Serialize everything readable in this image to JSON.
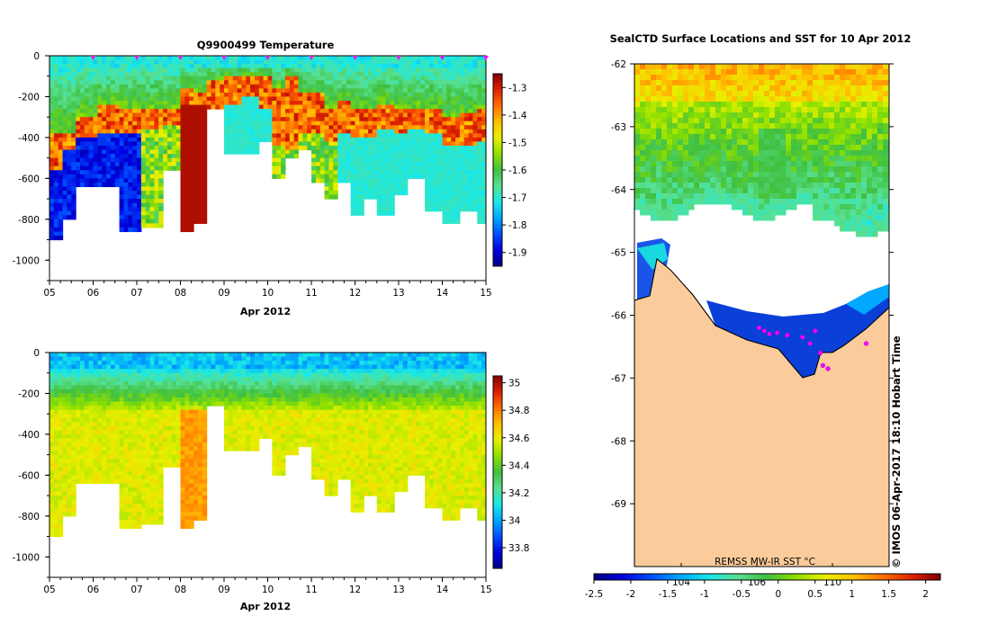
{
  "chart_data": [
    {
      "type": "heatmap",
      "title": "Q9900499  Temperature",
      "xlabel": "Apr 2012",
      "ylabel": "",
      "xticks": [
        "05",
        "06",
        "07",
        "08",
        "09",
        "10",
        "11",
        "12",
        "13",
        "14",
        "15"
      ],
      "xlim": [
        5,
        15
      ],
      "yticks": [
        0,
        -200,
        -400,
        -600,
        -800,
        -1000
      ],
      "ylim": [
        -1100,
        0
      ],
      "colorbar": {
        "min": -1.95,
        "max": -1.25,
        "ticks": [
          -1.3,
          -1.4,
          -1.5,
          -1.6,
          -1.7,
          -1.8,
          -1.9
        ]
      },
      "profile_markers": [
        6,
        7,
        8,
        9,
        10,
        11,
        12,
        13,
        14,
        15
      ],
      "profiles": [
        {
          "day": 5.1,
          "depth": 900,
          "warm_top": 380,
          "warm_bot": 560,
          "mode": "cold_deep"
        },
        {
          "day": 5.4,
          "depth": 800,
          "warm_top": 380,
          "warm_bot": 460,
          "mode": "cold_deep"
        },
        {
          "day": 5.8,
          "depth": 640,
          "warm_top": 300,
          "warm_bot": 400,
          "mode": "cold_deep"
        },
        {
          "day": 6.4,
          "depth": 630,
          "warm_top": 240,
          "warm_bot": 380,
          "mode": "cold_deep"
        },
        {
          "day": 6.8,
          "depth": 860,
          "warm_top": 250,
          "warm_bot": 380,
          "mode": "cold_deep"
        },
        {
          "day": 7.3,
          "depth": 840,
          "warm_top": 250,
          "warm_bot": 360,
          "mode": "mixed"
        },
        {
          "day": 7.8,
          "depth": 560,
          "warm_top": 250,
          "warm_bot": 340,
          "mode": "mixed"
        },
        {
          "day": 8.15,
          "depth": 860,
          "warm_top": 160,
          "warm_bot": 860,
          "mode": "warm_deep"
        },
        {
          "day": 8.45,
          "depth": 810,
          "warm_top": 170,
          "warm_bot": 810,
          "mode": "warm_deep"
        },
        {
          "day": 8.75,
          "depth": 250,
          "warm_top": 120,
          "warm_bot": 250,
          "mode": "mixed"
        },
        {
          "day": 9.2,
          "depth": 470,
          "warm_top": 100,
          "warm_bot": 230,
          "mode": "cyan_deep"
        },
        {
          "day": 9.6,
          "depth": 470,
          "warm_top": 100,
          "warm_bot": 190,
          "mode": "cyan_deep"
        },
        {
          "day": 10.0,
          "depth": 420,
          "warm_top": 100,
          "warm_bot": 250,
          "mode": "cyan_deep"
        },
        {
          "day": 10.25,
          "depth": 590,
          "warm_top": 150,
          "warm_bot": 430,
          "mode": "mixed"
        },
        {
          "day": 10.5,
          "depth": 500,
          "warm_top": 100,
          "warm_bot": 450,
          "mode": "mixed"
        },
        {
          "day": 10.8,
          "depth": 460,
          "warm_top": 180,
          "warm_bot": 380,
          "mode": "mixed"
        },
        {
          "day": 11.1,
          "depth": 620,
          "warm_top": 180,
          "warm_bot": 380,
          "mode": "mixed"
        },
        {
          "day": 11.4,
          "depth": 700,
          "warm_top": 250,
          "warm_bot": 420,
          "mode": "mixed"
        },
        {
          "day": 11.7,
          "depth": 610,
          "warm_top": 220,
          "warm_bot": 380,
          "mode": "cyan_deep"
        },
        {
          "day": 12.0,
          "depth": 780,
          "warm_top": 250,
          "warm_bot": 400,
          "mode": "cyan_deep"
        },
        {
          "day": 12.3,
          "depth": 690,
          "warm_top": 260,
          "warm_bot": 390,
          "mode": "cyan_deep"
        },
        {
          "day": 12.7,
          "depth": 770,
          "warm_top": 230,
          "warm_bot": 360,
          "mode": "cyan_deep"
        },
        {
          "day": 13.0,
          "depth": 680,
          "warm_top": 250,
          "warm_bot": 380,
          "mode": "cyan_deep"
        },
        {
          "day": 13.4,
          "depth": 600,
          "warm_top": 250,
          "warm_bot": 360,
          "mode": "cyan_deep"
        },
        {
          "day": 13.8,
          "depth": 760,
          "warm_top": 250,
          "warm_bot": 380,
          "mode": "cyan_deep"
        },
        {
          "day": 14.2,
          "depth": 820,
          "warm_top": 290,
          "warm_bot": 430,
          "mode": "cyan_deep"
        },
        {
          "day": 14.6,
          "depth": 760,
          "warm_top": 280,
          "warm_bot": 440,
          "mode": "cyan_deep"
        },
        {
          "day": 14.9,
          "depth": 820,
          "warm_top": 260,
          "warm_bot": 420,
          "mode": "cyan_deep"
        }
      ]
    },
    {
      "type": "heatmap",
      "title": "",
      "xlabel": "Apr 2012",
      "ylabel": "",
      "xticks": [
        "05",
        "06",
        "07",
        "08",
        "09",
        "10",
        "11",
        "12",
        "13",
        "14",
        "15"
      ],
      "xlim": [
        5,
        15
      ],
      "yticks": [
        0,
        -200,
        -400,
        -600,
        -800,
        -1000
      ],
      "ylim": [
        -1100,
        0
      ],
      "colorbar": {
        "min": 33.65,
        "max": 35.05,
        "ticks": [
          35,
          34.8,
          34.6,
          34.4,
          34.2,
          34,
          33.8
        ]
      }
    },
    {
      "type": "heatmap",
      "title": "SealCTD Surface Locations and SST for 10 Apr 2012",
      "xlabel": "",
      "ylabel": "",
      "yticks": [
        -62,
        -63,
        -64,
        -65,
        -66,
        -67,
        -68,
        -69
      ],
      "ylim": [
        -70,
        -62
      ],
      "inner_xticks": [
        "104",
        "106",
        "110"
      ],
      "annotation": "REMSS MW-IR SST °C",
      "side_note": "©  IMOS 06-Apr-2017 18:10 Hobart Time",
      "colorbar": {
        "min": -2.5,
        "max": 2.2,
        "ticks": [
          -2.5,
          -2,
          -1.5,
          -1,
          -0.5,
          0,
          0.5,
          1,
          1.5,
          2
        ]
      },
      "seal_positions": [
        {
          "lon": 0.49,
          "lat": -66.2
        },
        {
          "lon": 0.51,
          "lat": -66.25
        },
        {
          "lon": 0.53,
          "lat": -66.3
        },
        {
          "lon": 0.56,
          "lat": -66.28
        },
        {
          "lon": 0.6,
          "lat": -66.32
        },
        {
          "lon": 0.66,
          "lat": -66.35
        },
        {
          "lon": 0.69,
          "lat": -66.45
        },
        {
          "lon": 0.71,
          "lat": -66.25
        },
        {
          "lon": 0.74,
          "lat": -66.8
        },
        {
          "lon": 0.76,
          "lat": -66.85
        },
        {
          "lon": 0.73,
          "lat": -66.6
        },
        {
          "lon": 0.91,
          "lat": -66.45
        }
      ]
    }
  ]
}
